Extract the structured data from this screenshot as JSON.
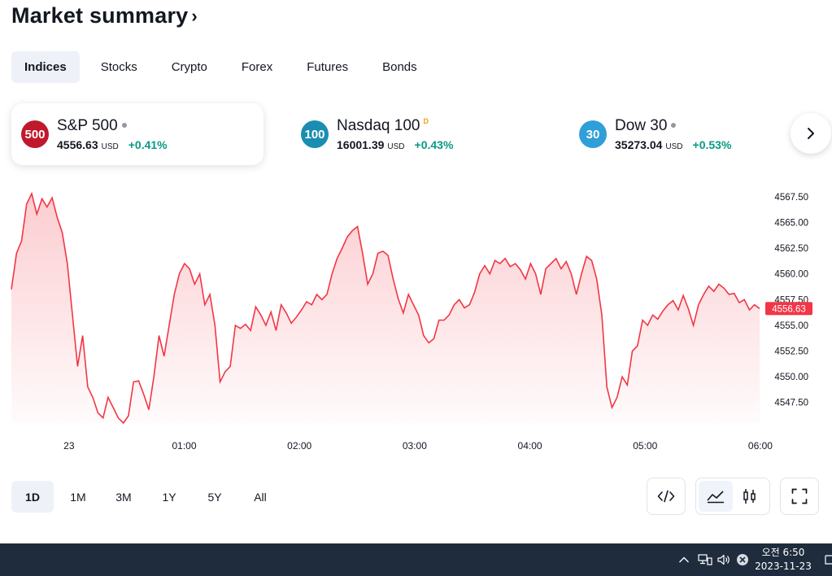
{
  "header": {
    "title": "Market summary",
    "chevron": "›"
  },
  "tabs": [
    {
      "label": "Indices",
      "active": true
    },
    {
      "label": "Stocks",
      "active": false
    },
    {
      "label": "Crypto",
      "active": false
    },
    {
      "label": "Forex",
      "active": false
    },
    {
      "label": "Futures",
      "active": false
    },
    {
      "label": "Bonds",
      "active": false
    }
  ],
  "cards": [
    {
      "badge": "500",
      "badge_color": "#c0192c",
      "name": "S&P 500",
      "marker": "dot",
      "price": "4556.63",
      "currency": "USD",
      "change": "+0.41%"
    },
    {
      "badge": "100",
      "badge_color": "#1a8eb0",
      "name": "Nasdaq 100",
      "marker": "D",
      "price": "16001.39",
      "currency": "USD",
      "change": "+0.43%"
    },
    {
      "badge": "30",
      "badge_color": "#2f9fd8",
      "name": "Dow 30",
      "marker": "dot",
      "price": "35273.04",
      "currency": "USD",
      "change": "+0.53%"
    }
  ],
  "colors": {
    "positive": "#089981",
    "line": "#f23645",
    "accent_tab_bg": "#eef1f8"
  },
  "chart_data": {
    "type": "area",
    "series": [
      {
        "values": [
          4558.5,
          4562,
          4563.2,
          4566.8,
          4567.8,
          4565.8,
          4567.3,
          4566.5,
          4567.4,
          4565.5,
          4564,
          4561,
          4556,
          4551,
          4554,
          4549,
          4548,
          4546.5,
          4546,
          4548,
          4547,
          4546,
          4545.5,
          4546.2,
          4549.5,
          4549.6,
          4548.3,
          4546.8,
          4550,
          4554,
          4552,
          4555,
          4558,
          4560,
          4561,
          4560.5,
          4559,
          4560,
          4557,
          4558,
          4555,
          4549.5,
          4550.5,
          4551,
          4555,
          4554.7,
          4555.1,
          4554.5,
          4556.8,
          4556,
          4555,
          4556.3,
          4554.5,
          4557,
          4556.2,
          4555.2,
          4555.8,
          4556.5,
          4557.3,
          4557,
          4558,
          4557.5,
          4558,
          4560,
          4561.5,
          4562.5,
          4563.6,
          4564.2,
          4564.6,
          4562,
          4559,
          4560,
          4562,
          4562.2,
          4561.8,
          4559.5,
          4557.6,
          4556.2,
          4558,
          4557,
          4556,
          4554,
          4553.3,
          4553.7,
          4555.5,
          4555.5,
          4556,
          4557,
          4557.5,
          4556.7,
          4557,
          4558.2,
          4560,
          4560.8,
          4560,
          4561.3,
          4561,
          4561.5,
          4560.7,
          4561,
          4560.4,
          4559.5,
          4561,
          4560,
          4558,
          4560.5,
          4561,
          4561.5,
          4560.5,
          4561.2,
          4560,
          4558,
          4560,
          4561.7,
          4561.3,
          4559.5,
          4556,
          4549,
          4547,
          4548,
          4550,
          4549.2,
          4552.5,
          4553,
          4555.5,
          4555,
          4556,
          4555.6,
          4556.4,
          4557,
          4557.4,
          4556.5,
          4557.9,
          4556.6,
          4555,
          4557,
          4558,
          4558.8,
          4558.3,
          4559,
          4558.6,
          4558,
          4558.1,
          4557.2,
          4557.5,
          4556.5,
          4557,
          4556.63
        ],
        "last_label": "4556.63"
      }
    ],
    "yticks": [
      "4567.50",
      "4565.00",
      "4562.50",
      "4560.00",
      "4557.50",
      "4555.00",
      "4552.50",
      "4550.00",
      "4547.50"
    ],
    "yrange": [
      4545.5,
      4567.8
    ],
    "xticks": [
      {
        "label": "23",
        "t": 0.5
      },
      {
        "label": "01:00",
        "t": 1.5
      },
      {
        "label": "02:00",
        "t": 2.5
      },
      {
        "label": "03:00",
        "t": 3.5
      },
      {
        "label": "04:00",
        "t": 4.5
      },
      {
        "label": "05:00",
        "t": 5.5
      },
      {
        "label": "06:00",
        "t": 6.5
      }
    ],
    "xrange": [
      -0.0,
      6.55
    ],
    "grid": false
  },
  "ranges": [
    {
      "label": "1D",
      "active": true
    },
    {
      "label": "1M",
      "active": false
    },
    {
      "label": "3M",
      "active": false
    },
    {
      "label": "1Y",
      "active": false
    },
    {
      "label": "5Y",
      "active": false
    },
    {
      "label": "All",
      "active": false
    }
  ],
  "taskbar": {
    "time": "오전 6:50",
    "date": "2023-11-23"
  }
}
